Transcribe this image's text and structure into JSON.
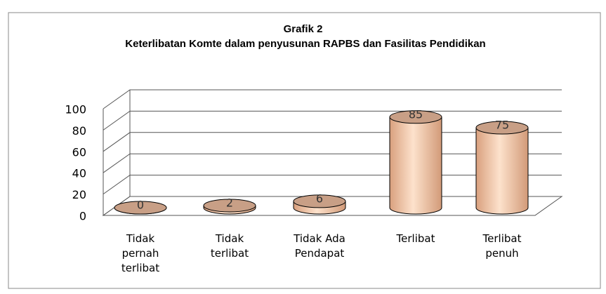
{
  "chart_data": {
    "type": "bar3d",
    "title": "Grafik 2",
    "subtitle": "Keterlibatan Komte dalam penyusunan RAPBS dan Fasilitas Pendidikan",
    "categories": [
      "Tidak pernah terlibat",
      "Tidak terlibat",
      "Tidak Ada Pendapat",
      "Terlibat",
      "Terlibat penuh"
    ],
    "values": [
      0,
      2,
      6,
      85,
      75
    ],
    "color": "#f6c9a8",
    "ylim": [
      0,
      100
    ],
    "yticks": [
      0,
      20,
      40,
      60,
      80,
      100
    ],
    "grid": true
  }
}
